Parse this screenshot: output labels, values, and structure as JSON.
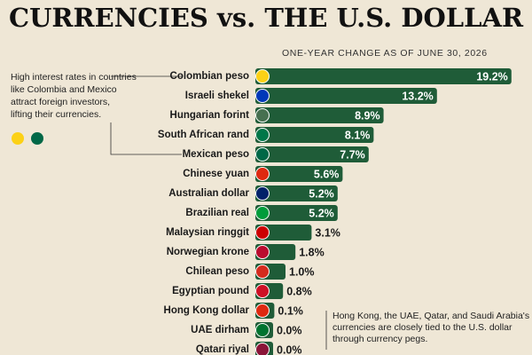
{
  "chart_data": {
    "type": "bar",
    "orientation": "horizontal",
    "title": "CURRENCIES vs. THE U.S. DOLLAR",
    "subtitle": "ONE-YEAR CHANGE AS OF JUNE 30, 2026",
    "categories": [
      "Colombian peso",
      "Israeli shekel",
      "Hungarian forint",
      "South African rand",
      "Mexican peso",
      "Chinese yuan",
      "Australian dollar",
      "Brazilian real",
      "Malaysian ringgit",
      "Norwegian krone",
      "Chilean peso",
      "Egyptian pound",
      "Hong Kong dollar",
      "UAE dirham",
      "Qatari riyal"
    ],
    "values": [
      19.2,
      13.2,
      8.9,
      8.1,
      7.7,
      5.6,
      5.2,
      5.2,
      3.1,
      1.8,
      1.0,
      0.8,
      0.1,
      0.0,
      0.0
    ],
    "value_labels": [
      "19.2%",
      "13.2%",
      "8.9%",
      "8.1%",
      "7.7%",
      "5.6%",
      "5.2%",
      "5.2%",
      "3.1%",
      "1.8%",
      "1.0%",
      "0.8%",
      "0.1%",
      "0.0%",
      "0.0%"
    ],
    "color": "#1f5c38",
    "annotations": [
      {
        "lines": [
          "High interest rates in countries",
          "like Colombia and Mexico",
          "attract foreign investors,",
          "lifting their currencies."
        ]
      },
      {
        "lines": [
          "Hong Kong, the UAE, Qatar, and Saudi Arabia's",
          "currencies are closely tied to the U.S. dollar",
          "through currency pegs."
        ]
      }
    ]
  }
}
